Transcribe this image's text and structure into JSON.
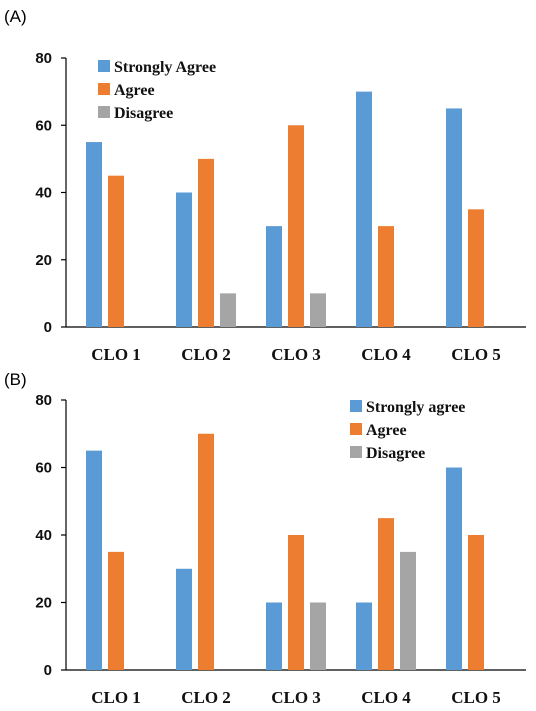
{
  "colors": {
    "strongly_agree": "#5b9bd5",
    "agree": "#ed7d31",
    "disagree": "#a5a5a5"
  },
  "chart_data": [
    {
      "panel": "(A)",
      "type": "bar",
      "categories": [
        "CLO 1",
        "CLO 2",
        "CLO 3",
        "CLO 4",
        "CLO 5"
      ],
      "ylim": [
        0,
        80
      ],
      "yticks": [
        0,
        20,
        40,
        60,
        80
      ],
      "grid": false,
      "legend_position": "top-left",
      "series": [
        {
          "name": "Strongly Agree",
          "color": "#5b9bd5",
          "values": [
            55,
            40,
            30,
            70,
            65
          ]
        },
        {
          "name": "Agree",
          "color": "#ed7d31",
          "values": [
            45,
            50,
            60,
            30,
            35
          ]
        },
        {
          "name": "Disagree",
          "color": "#a5a5a5",
          "values": [
            0,
            10,
            10,
            0,
            0
          ]
        }
      ]
    },
    {
      "panel": "(B)",
      "type": "bar",
      "categories": [
        "CLO 1",
        "CLO 2",
        "CLO 3",
        "CLO 4",
        "CLO 5"
      ],
      "ylim": [
        0,
        80
      ],
      "yticks": [
        0,
        20,
        40,
        60,
        80
      ],
      "grid": false,
      "legend_position": "top-right",
      "series": [
        {
          "name": "Strongly agree",
          "color": "#5b9bd5",
          "values": [
            65,
            30,
            20,
            20,
            60
          ]
        },
        {
          "name": "Agree",
          "color": "#ed7d31",
          "values": [
            35,
            70,
            40,
            45,
            40
          ]
        },
        {
          "name": "Disagree",
          "color": "#a5a5a5",
          "values": [
            0,
            0,
            20,
            35,
            0
          ]
        }
      ]
    }
  ]
}
